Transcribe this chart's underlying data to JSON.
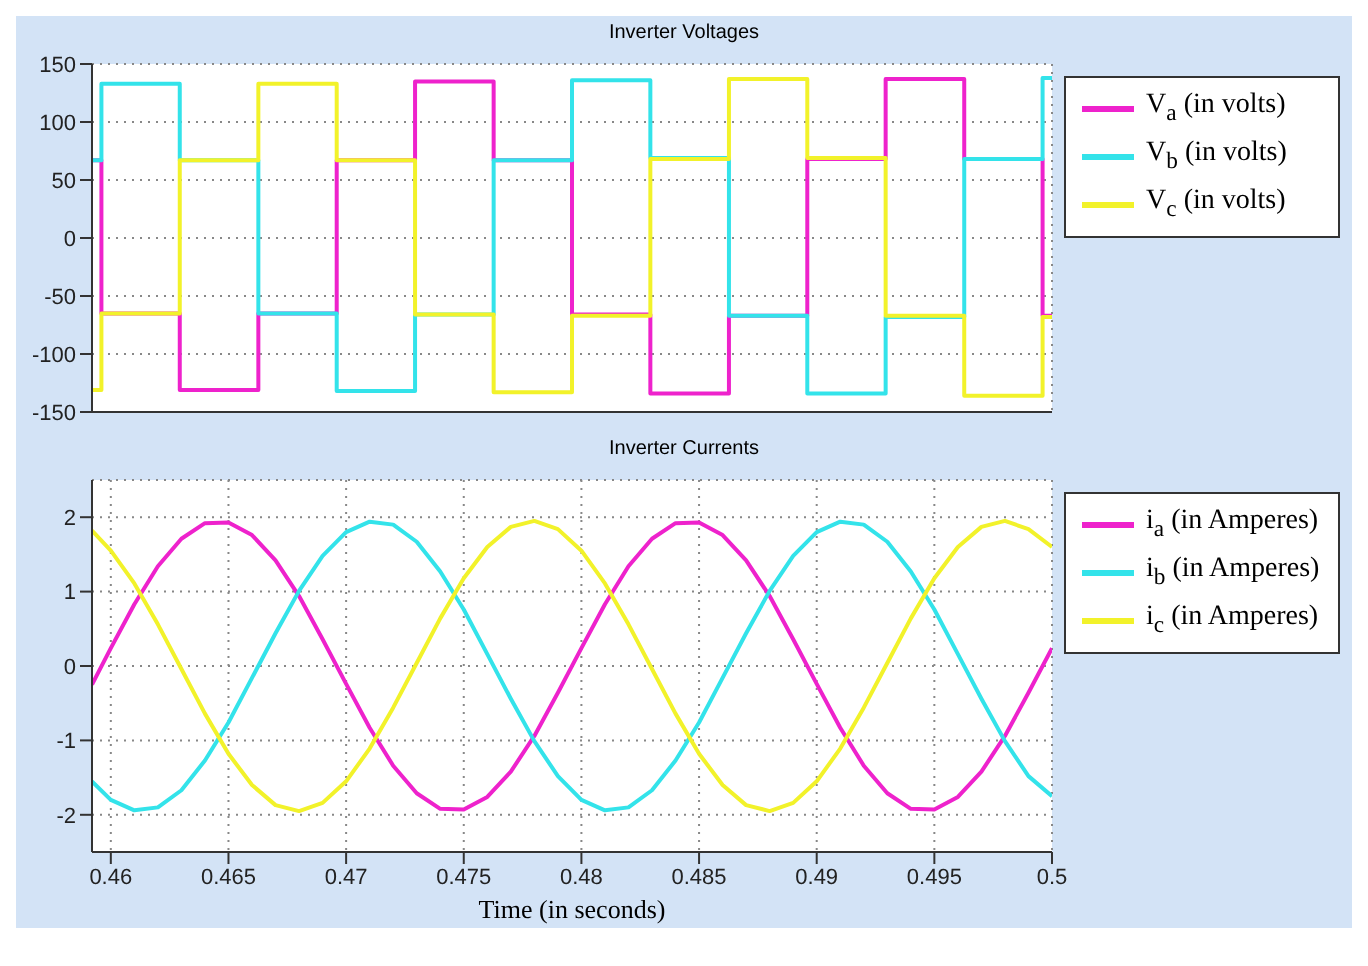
{
  "chart_data": [
    {
      "type": "step",
      "title": "Inverter Voltages",
      "xlim": [
        0.4592,
        0.5
      ],
      "xticks": [
        0.46,
        0.465,
        0.47,
        0.475,
        0.48,
        0.485,
        0.49,
        0.495,
        0.5
      ],
      "ylim": [
        -150,
        150
      ],
      "yticks": [
        -150,
        -100,
        -50,
        0,
        50,
        100,
        150
      ],
      "grid": true,
      "legend": "top right",
      "tick_labels": "y",
      "x": [
        0.4592,
        0.4596,
        0.46293,
        0.46627,
        0.4696,
        0.47293,
        0.47627,
        0.4796,
        0.48293,
        0.48627,
        0.4896,
        0.49293,
        0.49627,
        0.4996,
        0.5
      ],
      "series": [
        {
          "name": "V$_{a}$ (in volts)",
          "color": "#ee22cc",
          "values": [
            67,
            -65,
            -131,
            -65,
            67,
            135,
            67,
            -66,
            -134,
            -67,
            68,
            137,
            68,
            -67,
            -67
          ]
        },
        {
          "name": "V$_{b}$ (in volts)",
          "color": "#33e3ea",
          "values": [
            67,
            133,
            67,
            -65,
            -132,
            -66,
            67,
            136,
            69,
            -67,
            -134,
            -68,
            68,
            138,
            138
          ]
        },
        {
          "name": "V$_{c}$ (in volts)",
          "color": "#f2f22a",
          "values": [
            -131,
            -65,
            67,
            133,
            67,
            -66,
            -133,
            -67,
            68,
            137,
            69,
            -67,
            -136,
            -68,
            -68
          ]
        }
      ]
    },
    {
      "type": "line",
      "title": "Inverter Currents",
      "xlabel": "Time (in seconds)",
      "xlim": [
        0.4592,
        0.5
      ],
      "xticks": [
        0.46,
        0.465,
        0.47,
        0.475,
        0.48,
        0.485,
        0.49,
        0.495,
        0.5
      ],
      "ylim": [
        -2.5,
        2.5
      ],
      "yticks": [
        -2,
        -1,
        0,
        1,
        2
      ],
      "grid": true,
      "legend": "top right",
      "x": [
        0.4592,
        0.46,
        0.461,
        0.462,
        0.463,
        0.464,
        0.465,
        0.466,
        0.467,
        0.468,
        0.469,
        0.47,
        0.471,
        0.472,
        0.473,
        0.474,
        0.475,
        0.476,
        0.477,
        0.478,
        0.479,
        0.48,
        0.481,
        0.482,
        0.483,
        0.484,
        0.485,
        0.486,
        0.487,
        0.488,
        0.489,
        0.49,
        0.491,
        0.492,
        0.493,
        0.494,
        0.495,
        0.496,
        0.497,
        0.498,
        0.499,
        0.5
      ],
      "series": [
        {
          "name": "i$_{a}$ (in Amperes)",
          "color": "#ee22cc",
          "values": [
            -0.25,
            0.24,
            0.83,
            1.34,
            1.71,
            1.92,
            1.93,
            1.76,
            1.42,
            0.94,
            0.36,
            -0.24,
            -0.83,
            -1.34,
            -1.71,
            -1.92,
            -1.93,
            -1.76,
            -1.42,
            -0.94,
            -0.36,
            0.24,
            0.83,
            1.34,
            1.71,
            1.92,
            1.93,
            1.76,
            1.42,
            0.94,
            0.36,
            -0.24,
            -0.83,
            -1.34,
            -1.71,
            -1.92,
            -1.93,
            -1.76,
            -1.42,
            -0.94,
            -0.36,
            0.24
          ]
        },
        {
          "name": "i$_{b}$ (in Amperes)",
          "color": "#33e3ea",
          "values": [
            -1.55,
            -1.8,
            -1.94,
            -1.9,
            -1.67,
            -1.27,
            -0.76,
            -0.16,
            0.44,
            1.01,
            1.48,
            1.8,
            1.94,
            1.9,
            1.67,
            1.27,
            0.76,
            0.16,
            -0.44,
            -1.01,
            -1.48,
            -1.8,
            -1.94,
            -1.9,
            -1.67,
            -1.27,
            -0.76,
            -0.16,
            0.44,
            1.01,
            1.48,
            1.8,
            1.94,
            1.9,
            1.67,
            1.27,
            0.76,
            0.16,
            -0.44,
            -1.01,
            -1.48,
            -1.75
          ]
        },
        {
          "name": "i$_{c}$ (in Amperes)",
          "color": "#f2f22a",
          "values": [
            1.82,
            1.55,
            1.11,
            0.56,
            -0.04,
            -0.64,
            -1.18,
            -1.6,
            -1.87,
            -1.95,
            -1.84,
            -1.55,
            -1.11,
            -0.56,
            0.04,
            0.64,
            1.18,
            1.6,
            1.87,
            1.95,
            1.84,
            1.55,
            1.11,
            0.56,
            -0.04,
            -0.64,
            -1.18,
            -1.6,
            -1.87,
            -1.95,
            -1.84,
            -1.55,
            -1.11,
            -0.56,
            0.04,
            0.64,
            1.18,
            1.6,
            1.87,
            1.95,
            1.84,
            1.6
          ]
        }
      ]
    }
  ]
}
